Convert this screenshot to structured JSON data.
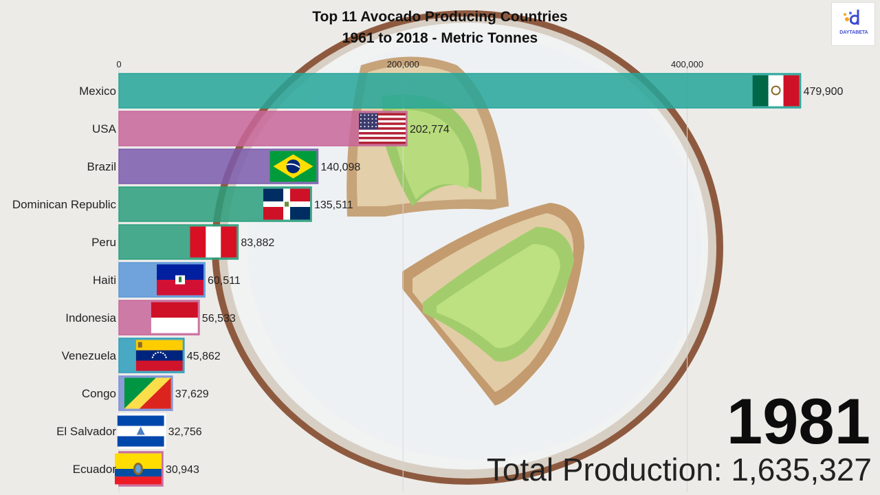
{
  "header": {
    "title": "Top 11 Avocado Producing Countries",
    "subtitle": "1961 to 2018 - Metric Tonnes"
  },
  "logo": {
    "text": "DAYTABETA",
    "icon": "dataviz-logo-icon"
  },
  "year": "1981",
  "total": "Total Production: 1,635,327",
  "colors": {
    "teal": "#26a69a",
    "pink": "#c8669a",
    "purple": "#7c5cae",
    "green": "#2a9f7c",
    "blue": "#5b97d8",
    "cyan": "#2d9dbb"
  },
  "chart_data": {
    "type": "bar",
    "orientation": "horizontal",
    "categories": [
      "Mexico",
      "USA",
      "Brazil",
      "Dominican Republic",
      "Peru",
      "Haiti",
      "Indonesia",
      "Venezuela",
      "Congo",
      "El Salvador",
      "Ecuador"
    ],
    "values": [
      479900,
      202774,
      140098,
      135511,
      83882,
      60511,
      56533,
      45862,
      37629,
      32756,
      30943
    ],
    "value_labels": [
      "479,900",
      "202,774",
      "140,098",
      "135,511",
      "83,882",
      "60,511",
      "56,533",
      "45,862",
      "37,629",
      "32,756",
      "30,943"
    ],
    "flags": [
      "mexico-flag-icon",
      "usa-flag-icon",
      "brazil-flag-icon",
      "dominican-republic-flag-icon",
      "peru-flag-icon",
      "haiti-flag-icon",
      "indonesia-flag-icon",
      "venezuela-flag-icon",
      "congo-flag-icon",
      "el-salvador-flag-icon",
      "ecuador-flag-icon"
    ],
    "bar_colors": [
      "#26a69a",
      "#c8669a",
      "#7c5cae",
      "#2a9f7c",
      "#2a9f7c",
      "#5b97d8",
      "#c8669a",
      "#2d9dbb",
      "#7a8fd6",
      "#ffffff",
      "#c8669a"
    ],
    "xticks": [
      0,
      200000,
      400000
    ],
    "xtick_labels": [
      "0",
      "200,000",
      "400,000"
    ],
    "xlim": [
      0,
      483000
    ],
    "grid": true
  }
}
